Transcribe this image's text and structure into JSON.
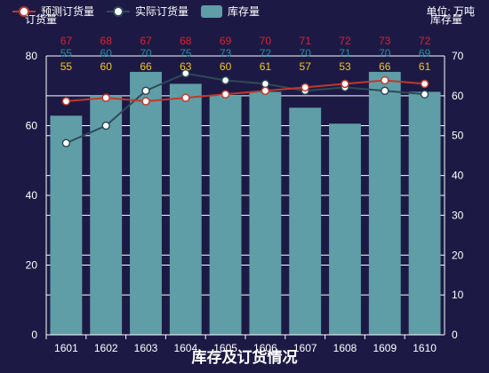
{
  "legend": {
    "predicted": "预测订货量",
    "actual": "实际订货量",
    "inventory": "库存量"
  },
  "unit_label": "单位: 万吨",
  "colors": {
    "background": "#1c1a45",
    "bar": "#5f9ea7",
    "predicted": "#c0392b",
    "actual": "#2f4a57",
    "label_predicted": "#e0202a",
    "label_actual": "#2a8c9a",
    "label_inventory": "#f5c518",
    "grid": "#ffffff",
    "axis_text": "#ffffff"
  },
  "chart_data": {
    "type": "bar",
    "title": "库存及订货情况",
    "categories": [
      "1601",
      "1602",
      "1603",
      "1604",
      "1605",
      "1606",
      "1607",
      "1608",
      "1609",
      "1610"
    ],
    "y_left": {
      "label": "订货量",
      "min": 0,
      "max": 80,
      "ticks": [
        0,
        20,
        40,
        60,
        80
      ]
    },
    "y_right": {
      "label": "库存量",
      "min": 0,
      "max": 70,
      "ticks": [
        0,
        10,
        20,
        30,
        40,
        50,
        60,
        70
      ]
    },
    "series": [
      {
        "name": "库存量",
        "kind": "bar",
        "axis": "right",
        "values": [
          55,
          60,
          66,
          63,
          60,
          61,
          57,
          53,
          66,
          61
        ]
      },
      {
        "name": "预测订货量",
        "kind": "line",
        "axis": "left",
        "values": [
          67,
          68,
          67,
          68,
          69,
          70,
          71,
          72,
          73,
          72
        ]
      },
      {
        "name": "实际订货量",
        "kind": "line",
        "axis": "left",
        "values": [
          55,
          60,
          70,
          75,
          73,
          72,
          70,
          71,
          70,
          69
        ]
      }
    ]
  }
}
